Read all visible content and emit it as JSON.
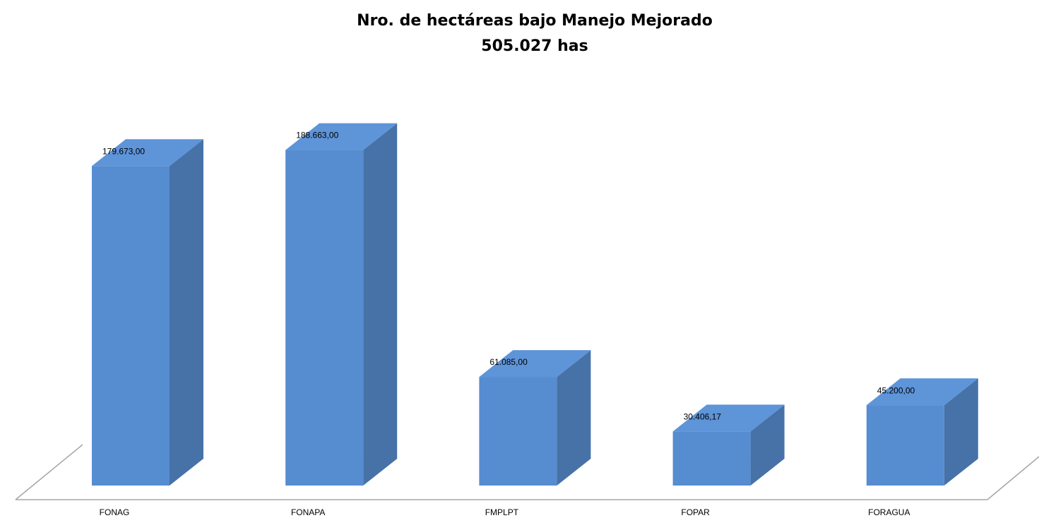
{
  "chart_data": {
    "type": "bar3d",
    "title": "Nro. de hectáreas bajo Manejo Mejorado",
    "subtitle": "505.027 has",
    "categories": [
      "FONAG",
      "FONAPA",
      "FMPLPT",
      "FOPAR",
      "FORAGUA"
    ],
    "values": [
      179673,
      188663,
      61085,
      30406.17,
      45200
    ],
    "value_labels": [
      "179.673,00",
      "188.663,00",
      "61.085,00",
      "30.406,17",
      "45.200,00"
    ],
    "color": "#568cd0",
    "ylim": [
      0,
      200000
    ]
  }
}
